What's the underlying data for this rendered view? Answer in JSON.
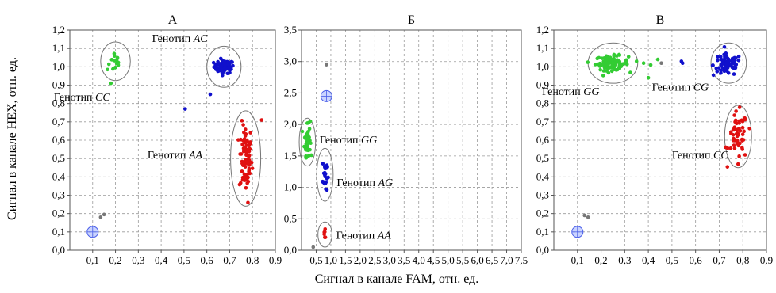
{
  "figure": {
    "ylabel": "Сигнал в канале HEX, отн. ед.",
    "xlabel": "Сигнал в канале FAM, отн. ед."
  },
  "colors": {
    "green": "#33cc33",
    "blue": "#1010cc",
    "red": "#e01010",
    "gray": "#777777",
    "ntc": "#8aa0ff"
  },
  "chart_data": [
    {
      "type": "scatter",
      "title": "А",
      "xlim": [
        0,
        0.9
      ],
      "ylim": [
        0,
        1.2
      ],
      "xticks": [
        "0,1",
        "0,2",
        "0,3",
        "0,4",
        "0,5",
        "0,6",
        "0,7",
        "0,8",
        "0,9"
      ],
      "yticks": [
        "0,0",
        "0,1",
        "0,2",
        "0,3",
        "0,4",
        "0,5",
        "0,6",
        "0,7",
        "0,8",
        "0,9",
        "1,0",
        "1,1",
        "1,2"
      ],
      "xtick_values": [
        0.1,
        0.2,
        0.3,
        0.4,
        0.5,
        0.6,
        0.7,
        0.8,
        0.9
      ],
      "ytick_values": [
        0,
        0.1,
        0.2,
        0.3,
        0.4,
        0.5,
        0.6,
        0.7,
        0.8,
        0.9,
        1.0,
        1.1,
        1.2
      ],
      "grid": true,
      "ntc": [
        0.1,
        0.1
      ],
      "clusters": [
        {
          "color": "green",
          "cx": 0.2,
          "cy": 1.03,
          "sx": 0.014,
          "sy": 0.03,
          "n": 14,
          "ellipse": [
            0.2,
            1.03,
            0.065,
            0.105
          ]
        },
        {
          "color": "blue",
          "cx": 0.675,
          "cy": 1.0,
          "sx": 0.022,
          "sy": 0.018,
          "n": 60,
          "ellipse": [
            0.675,
            1.0,
            0.075,
            0.112
          ]
        },
        {
          "color": "red",
          "cx": 0.77,
          "cy": 0.5,
          "sx": 0.014,
          "sy": 0.095,
          "n": 80,
          "ellipse": [
            0.77,
            0.5,
            0.066,
            0.26
          ]
        }
      ],
      "extra_points": [
        {
          "x": 0.505,
          "y": 0.77,
          "color": "blue"
        },
        {
          "x": 0.615,
          "y": 0.85,
          "color": "blue"
        },
        {
          "x": 0.78,
          "y": 0.26,
          "color": "red"
        },
        {
          "x": 0.84,
          "y": 0.71,
          "color": "red"
        },
        {
          "x": 0.18,
          "y": 0.91,
          "color": "green"
        },
        {
          "x": 0.165,
          "y": 0.985,
          "color": "green"
        },
        {
          "x": 0.135,
          "y": 0.18,
          "color": "gray"
        },
        {
          "x": 0.15,
          "y": 0.195,
          "color": "gray"
        }
      ],
      "annotations": [
        {
          "prefix": "Генотип ",
          "genotype": "AC",
          "x": 0.36,
          "y": 1.135
        },
        {
          "prefix": "Генотип ",
          "genotype": "CC",
          "x": -0.07,
          "y": 0.815
        },
        {
          "prefix": "Генотип ",
          "genotype": "AA",
          "x": 0.34,
          "y": 0.5
        }
      ]
    },
    {
      "type": "scatter",
      "title": "Б",
      "xlim": [
        0,
        7.5
      ],
      "ylim": [
        0,
        3.5
      ],
      "xticks": [
        "0,5",
        "1,0",
        "1,5",
        "2,0",
        "2,5",
        "3,0",
        "3,5",
        "4,0",
        "4,5",
        "5,0",
        "5,5",
        "6,0",
        "6,5",
        "7,0",
        "7,5"
      ],
      "yticks": [
        "0,0",
        "0,5",
        "1,0",
        "1,5",
        "2,0",
        "2,5",
        "3,0",
        "3,5"
      ],
      "xtick_values": [
        0.5,
        1.0,
        1.5,
        2.0,
        2.5,
        3.0,
        3.5,
        4.0,
        4.5,
        5.0,
        5.5,
        6.0,
        6.5,
        7.0,
        7.5
      ],
      "ytick_values": [
        0,
        0.5,
        1.0,
        1.5,
        2.0,
        2.5,
        3.0,
        3.5
      ],
      "grid": true,
      "ntc": [
        0.85,
        2.45
      ],
      "clusters": [
        {
          "color": "green",
          "cx": 0.2,
          "cy": 1.75,
          "sx": 0.05,
          "sy": 0.12,
          "n": 50,
          "ellipse": [
            0.2,
            1.72,
            0.28,
            0.38
          ]
        },
        {
          "color": "blue",
          "cx": 0.8,
          "cy": 1.2,
          "sx": 0.04,
          "sy": 0.15,
          "n": 25,
          "ellipse": [
            0.8,
            1.2,
            0.28,
            0.42
          ]
        },
        {
          "color": "red",
          "cx": 0.8,
          "cy": 0.25,
          "sx": 0.03,
          "sy": 0.05,
          "n": 6,
          "ellipse": [
            0.8,
            0.25,
            0.24,
            0.2
          ]
        }
      ],
      "extra_points": [
        {
          "x": 0.85,
          "y": 2.95,
          "color": "gray"
        },
        {
          "x": 0.4,
          "y": 0.05,
          "color": "gray"
        },
        {
          "x": 0.16,
          "y": 1.47,
          "color": "green"
        },
        {
          "x": 0.3,
          "y": 2.05,
          "color": "green"
        }
      ],
      "annotations": [
        {
          "prefix": "Генотип ",
          "genotype": "GG",
          "x": 0.62,
          "y": 1.7
        },
        {
          "prefix": "Генотип ",
          "genotype": "AG",
          "x": 1.2,
          "y": 1.02
        },
        {
          "prefix": "Генотип ",
          "genotype": "AA",
          "x": 1.18,
          "y": 0.18
        }
      ]
    },
    {
      "type": "scatter",
      "title": "В",
      "xlim": [
        0,
        0.9
      ],
      "ylim": [
        0,
        1.2
      ],
      "xticks": [
        "0,1",
        "0,2",
        "0,3",
        "0,4",
        "0,5",
        "0,6",
        "0,7",
        "0,8",
        "0,9"
      ],
      "yticks": [
        "0,0",
        "0,1",
        "0,2",
        "0,3",
        "0,4",
        "0,5",
        "0,6",
        "0,7",
        "0,8",
        "0,9",
        "1,0",
        "1,1",
        "1,2"
      ],
      "xtick_values": [
        0.1,
        0.2,
        0.3,
        0.4,
        0.5,
        0.6,
        0.7,
        0.8,
        0.9
      ],
      "ytick_values": [
        0,
        0.1,
        0.2,
        0.3,
        0.4,
        0.5,
        0.6,
        0.7,
        0.8,
        0.9,
        1.0,
        1.1,
        1.2
      ],
      "grid": true,
      "ntc": [
        0.1,
        0.1
      ],
      "clusters": [
        {
          "color": "green",
          "cx": 0.245,
          "cy": 1.02,
          "sx": 0.035,
          "sy": 0.02,
          "n": 90,
          "ellipse": [
            0.25,
            1.02,
            0.105,
            0.11
          ]
        },
        {
          "color": "blue",
          "cx": 0.735,
          "cy": 1.01,
          "sx": 0.03,
          "sy": 0.03,
          "n": 80,
          "ellipse": [
            0.74,
            1.02,
            0.075,
            0.11
          ]
        },
        {
          "color": "red",
          "cx": 0.78,
          "cy": 0.62,
          "sx": 0.02,
          "sy": 0.065,
          "n": 55,
          "ellipse": [
            0.78,
            0.62,
            0.057,
            0.17
          ]
        }
      ],
      "extra_points": [
        {
          "x": 0.35,
          "y": 1.03,
          "color": "green"
        },
        {
          "x": 0.38,
          "y": 1.02,
          "color": "green"
        },
        {
          "x": 0.41,
          "y": 1.01,
          "color": "green"
        },
        {
          "x": 0.44,
          "y": 1.04,
          "color": "green"
        },
        {
          "x": 0.4,
          "y": 0.94,
          "color": "green"
        },
        {
          "x": 0.455,
          "y": 1.02,
          "color": "gray"
        },
        {
          "x": 0.54,
          "y": 1.03,
          "color": "blue"
        },
        {
          "x": 0.545,
          "y": 1.02,
          "color": "blue"
        },
        {
          "x": 0.78,
          "y": 0.47,
          "color": "red"
        },
        {
          "x": 0.13,
          "y": 0.19,
          "color": "gray"
        },
        {
          "x": 0.145,
          "y": 0.18,
          "color": "gray"
        }
      ],
      "annotations": [
        {
          "prefix": "Генотип ",
          "genotype": "GG",
          "x": -0.05,
          "y": 0.845
        },
        {
          "prefix": "Генотип ",
          "genotype": "CG",
          "x": 0.415,
          "y": 0.87
        },
        {
          "prefix": "Генотип ",
          "genotype": "CC",
          "x": 0.5,
          "y": 0.5
        }
      ]
    }
  ]
}
